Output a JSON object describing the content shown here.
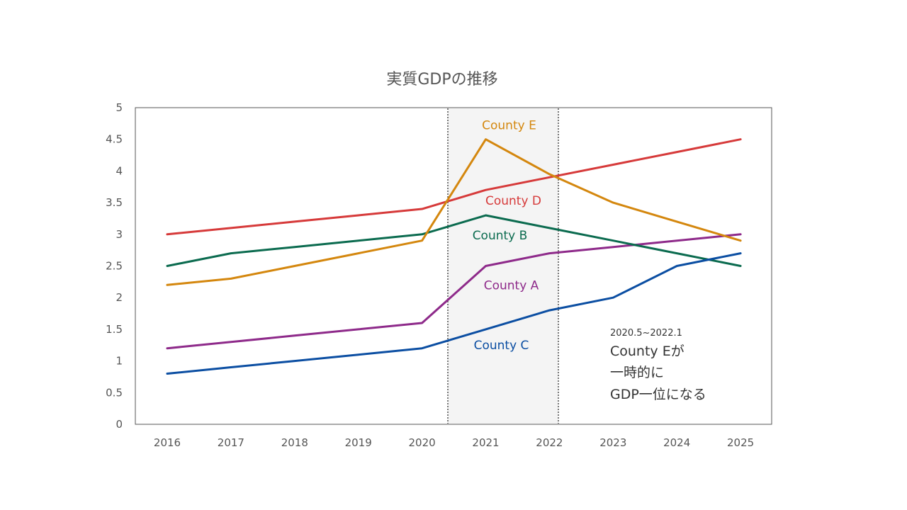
{
  "chart_data": {
    "type": "line",
    "title": "実質GDPの推移",
    "xlabel": "",
    "ylabel": "",
    "categories": [
      "2016",
      "2017",
      "2018",
      "2019",
      "2020",
      "2021",
      "2022",
      "2023",
      "2024",
      "2025"
    ],
    "ylim": [
      0,
      5
    ],
    "yticks": [
      "0",
      "0.5",
      "1",
      "1.5",
      "2",
      "2.5",
      "3",
      "3.5",
      "4",
      "4.5",
      "5"
    ],
    "grid": false,
    "legend": "none (labels placed on the lines)",
    "series": [
      {
        "name": "County A",
        "color": "#8e2a8a",
        "values": [
          1.2,
          1.3,
          1.4,
          1.5,
          1.6,
          2.5,
          2.7,
          2.8,
          2.9,
          3.0
        ]
      },
      {
        "name": "County B",
        "color": "#0b6b4f",
        "values": [
          2.5,
          2.7,
          2.8,
          2.9,
          3.0,
          3.3,
          3.1,
          2.9,
          2.7,
          2.5
        ]
      },
      {
        "name": "County C",
        "color": "#0b4ea2",
        "values": [
          0.8,
          0.9,
          1.0,
          1.1,
          1.2,
          1.5,
          1.8,
          2.0,
          2.5,
          2.7
        ]
      },
      {
        "name": "County D",
        "color": "#d63a3a",
        "values": [
          3.0,
          3.1,
          3.2,
          3.3,
          3.4,
          3.7,
          3.9,
          4.1,
          4.3,
          4.5
        ]
      },
      {
        "name": "County E",
        "color": "#d4870e",
        "values": [
          2.2,
          2.3,
          2.5,
          2.7,
          2.9,
          4.5,
          3.95,
          3.5,
          3.2,
          2.9
        ]
      }
    ],
    "highlight_span": {
      "from": "2020.5",
      "to": "2022.1"
    },
    "annotation": {
      "range": "2020.5~2022.1",
      "lines": [
        "County Eが",
        "一時的に",
        "GDP一位になる"
      ]
    }
  }
}
